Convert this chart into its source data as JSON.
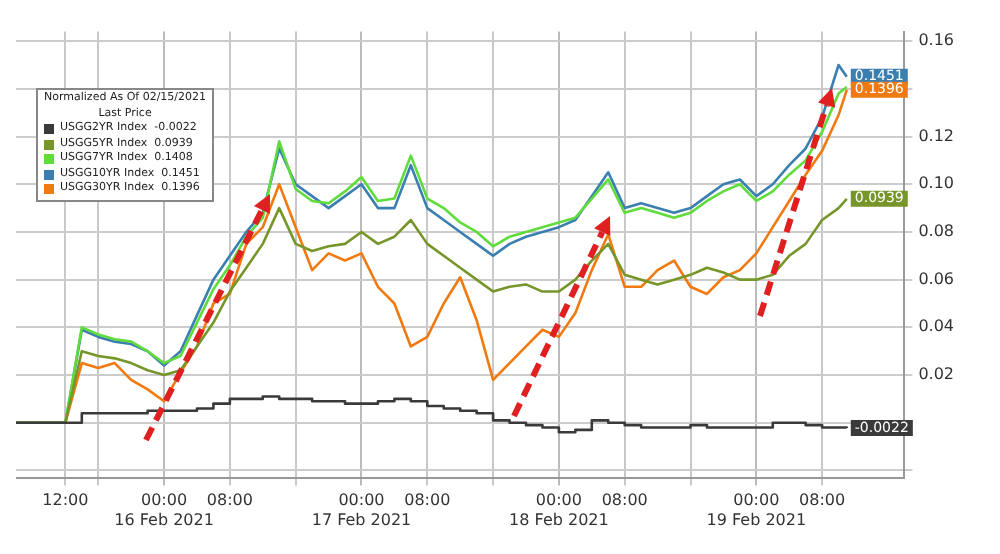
{
  "chart_data": {
    "type": "line",
    "legend_title": "Normalized As Of 02/15/2021\nLast Price",
    "annotations": [
      {
        "text": "0.1451",
        "x": "2021-02-19T11:00",
        "y": 0.1451
      },
      {
        "text": "0.1396",
        "x": "2021-02-19T11:00",
        "y": 0.1396
      },
      {
        "text": "0.0939",
        "x": "2021-02-19T11:00",
        "y": 0.0939
      },
      {
        "text": "-0.0022",
        "x": "2021-02-19T11:00",
        "y": -0.0022
      }
    ],
    "legend": "top left",
    "grid": true,
    "marker": "none",
    "x": [
      "2021-02-15T06:00",
      "2021-02-15T12:00",
      "2021-02-15T14:00",
      "2021-02-15T16:00",
      "2021-02-15T18:00",
      "2021-02-15T20:00",
      "2021-02-15T22:00",
      "2021-02-16T00:00",
      "2021-02-16T02:00",
      "2021-02-16T04:00",
      "2021-02-16T06:00",
      "2021-02-16T08:00",
      "2021-02-16T10:00",
      "2021-02-16T12:00",
      "2021-02-16T14:00",
      "2021-02-16T16:00",
      "2021-02-16T18:00",
      "2021-02-16T20:00",
      "2021-02-16T22:00",
      "2021-02-17T00:00",
      "2021-02-17T02:00",
      "2021-02-17T04:00",
      "2021-02-17T06:00",
      "2021-02-17T08:00",
      "2021-02-17T10:00",
      "2021-02-17T12:00",
      "2021-02-17T14:00",
      "2021-02-17T16:00",
      "2021-02-17T18:00",
      "2021-02-17T20:00",
      "2021-02-17T22:00",
      "2021-02-18T00:00",
      "2021-02-18T02:00",
      "2021-02-18T04:00",
      "2021-02-18T06:00",
      "2021-02-18T08:00",
      "2021-02-18T10:00",
      "2021-02-18T12:00",
      "2021-02-18T14:00",
      "2021-02-18T16:00",
      "2021-02-18T18:00",
      "2021-02-18T20:00",
      "2021-02-18T22:00",
      "2021-02-19T00:00",
      "2021-02-19T02:00",
      "2021-02-19T04:00",
      "2021-02-19T06:00",
      "2021-02-19T08:00",
      "2021-02-19T10:00",
      "2021-02-19T11:00"
    ],
    "xlim": [
      "2021-02-15T06:00",
      "2021-02-19T18:00"
    ],
    "xticks": [
      {
        "value": "2021-02-15T12:00",
        "label": "12:00"
      },
      {
        "value": "2021-02-15T16:00",
        "label": null
      },
      {
        "value": "2021-02-16T00:00",
        "label": "00:00\n16 Feb 2021"
      },
      {
        "value": "2021-02-16T08:00",
        "label": "08:00"
      },
      {
        "value": "2021-02-16T16:00",
        "label": null
      },
      {
        "value": "2021-02-17T00:00",
        "label": "00:00\n17 Feb 2021"
      },
      {
        "value": "2021-02-17T08:00",
        "label": "08:00"
      },
      {
        "value": "2021-02-17T16:00",
        "label": null
      },
      {
        "value": "2021-02-18T00:00",
        "label": "00:00\n18 Feb 2021"
      },
      {
        "value": "2021-02-18T08:00",
        "label": "08:00"
      },
      {
        "value": "2021-02-18T16:00",
        "label": null
      },
      {
        "value": "2021-02-19T00:00",
        "label": "00:00\n19 Feb 2021"
      },
      {
        "value": "2021-02-19T08:00",
        "label": "08:00"
      }
    ],
    "ylim": [
      -0.023,
      0.164
    ],
    "yticks": [
      {
        "value": -0.02,
        "label": null
      },
      {
        "value": 0,
        "label": null
      },
      0.02,
      0.04,
      0.06,
      0.08,
      {
        "value": 0.1,
        "label": "0.10"
      },
      0.12,
      {
        "value": 0.14,
        "label": null
      },
      0.16
    ],
    "series": [
      {
        "name": "USGG2YR Index  -0.0022",
        "type": "step",
        "color": "#3a3a3a",
        "values": [
          0,
          0,
          0.004,
          0.004,
          0.004,
          0.004,
          0.005,
          0.005,
          0.005,
          0.006,
          0.008,
          0.01,
          0.01,
          0.011,
          0.01,
          0.01,
          0.009,
          0.009,
          0.008,
          0.008,
          0.009,
          0.01,
          0.009,
          0.007,
          0.006,
          0.005,
          0.004,
          0.001,
          0,
          -0.001,
          -0.002,
          -0.004,
          -0.003,
          0.001,
          0,
          -0.001,
          -0.002,
          -0.002,
          -0.002,
          -0.001,
          -0.002,
          -0.002,
          -0.002,
          -0.002,
          0,
          0,
          -0.001,
          -0.002,
          -0.002,
          -0.0022
        ]
      },
      {
        "name": "USGG5YR Index  0.0939",
        "color": "#76962a",
        "values": [
          0,
          0,
          0.03,
          0.028,
          0.027,
          0.025,
          0.022,
          0.02,
          0.022,
          0.032,
          0.042,
          0.055,
          0.065,
          0.075,
          0.09,
          0.075,
          0.072,
          0.074,
          0.075,
          0.08,
          0.075,
          0.078,
          0.085,
          0.075,
          0.07,
          0.065,
          0.06,
          0.055,
          0.057,
          0.058,
          0.055,
          0.055,
          0.06,
          0.068,
          0.075,
          0.062,
          0.06,
          0.058,
          0.06,
          0.062,
          0.065,
          0.063,
          0.06,
          0.06,
          0.062,
          0.07,
          0.075,
          0.085,
          0.09,
          0.0939
        ]
      },
      {
        "name": "USGG7YR Index  0.1408",
        "color": "#5fdc3c",
        "values": [
          0,
          0,
          0.04,
          0.037,
          0.035,
          0.034,
          0.03,
          0.025,
          0.028,
          0.042,
          0.056,
          0.066,
          0.078,
          0.086,
          0.118,
          0.098,
          0.093,
          0.092,
          0.097,
          0.103,
          0.093,
          0.094,
          0.112,
          0.094,
          0.09,
          0.084,
          0.08,
          0.074,
          0.078,
          0.08,
          0.082,
          0.084,
          0.086,
          0.094,
          0.102,
          0.088,
          0.09,
          0.088,
          0.086,
          0.088,
          0.093,
          0.097,
          0.1,
          0.093,
          0.097,
          0.104,
          0.11,
          0.122,
          0.138,
          0.1408
        ]
      },
      {
        "name": "USGG10YR Index  0.1451",
        "color": "#3a7fb0",
        "values": [
          0,
          0,
          0.039,
          0.036,
          0.034,
          0.033,
          0.03,
          0.024,
          0.03,
          0.045,
          0.06,
          0.07,
          0.08,
          0.088,
          0.115,
          0.1,
          0.095,
          0.09,
          0.095,
          0.1,
          0.09,
          0.09,
          0.108,
          0.09,
          0.085,
          0.08,
          0.075,
          0.07,
          0.075,
          0.078,
          0.08,
          0.082,
          0.085,
          0.095,
          0.105,
          0.09,
          0.092,
          0.09,
          0.088,
          0.09,
          0.095,
          0.1,
          0.102,
          0.095,
          0.1,
          0.108,
          0.115,
          0.128,
          0.15,
          0.1451
        ]
      },
      {
        "name": "USGG30YR Index  0.1396",
        "color": "#f07a10",
        "values": [
          0,
          0,
          0.025,
          0.023,
          0.025,
          0.018,
          0.014,
          0.009,
          0.021,
          0.032,
          0.05,
          0.054,
          0.075,
          0.082,
          0.1,
          0.082,
          0.064,
          0.071,
          0.068,
          0.071,
          0.057,
          0.05,
          0.032,
          0.036,
          0.05,
          0.061,
          0.043,
          0.018,
          0.025,
          0.032,
          0.039,
          0.036,
          0.046,
          0.064,
          0.079,
          0.057,
          0.057,
          0.064,
          0.068,
          0.057,
          0.054,
          0.061,
          0.064,
          0.071,
          0.082,
          0.093,
          0.104,
          0.114,
          0.129,
          0.1396
        ]
      }
    ]
  }
}
